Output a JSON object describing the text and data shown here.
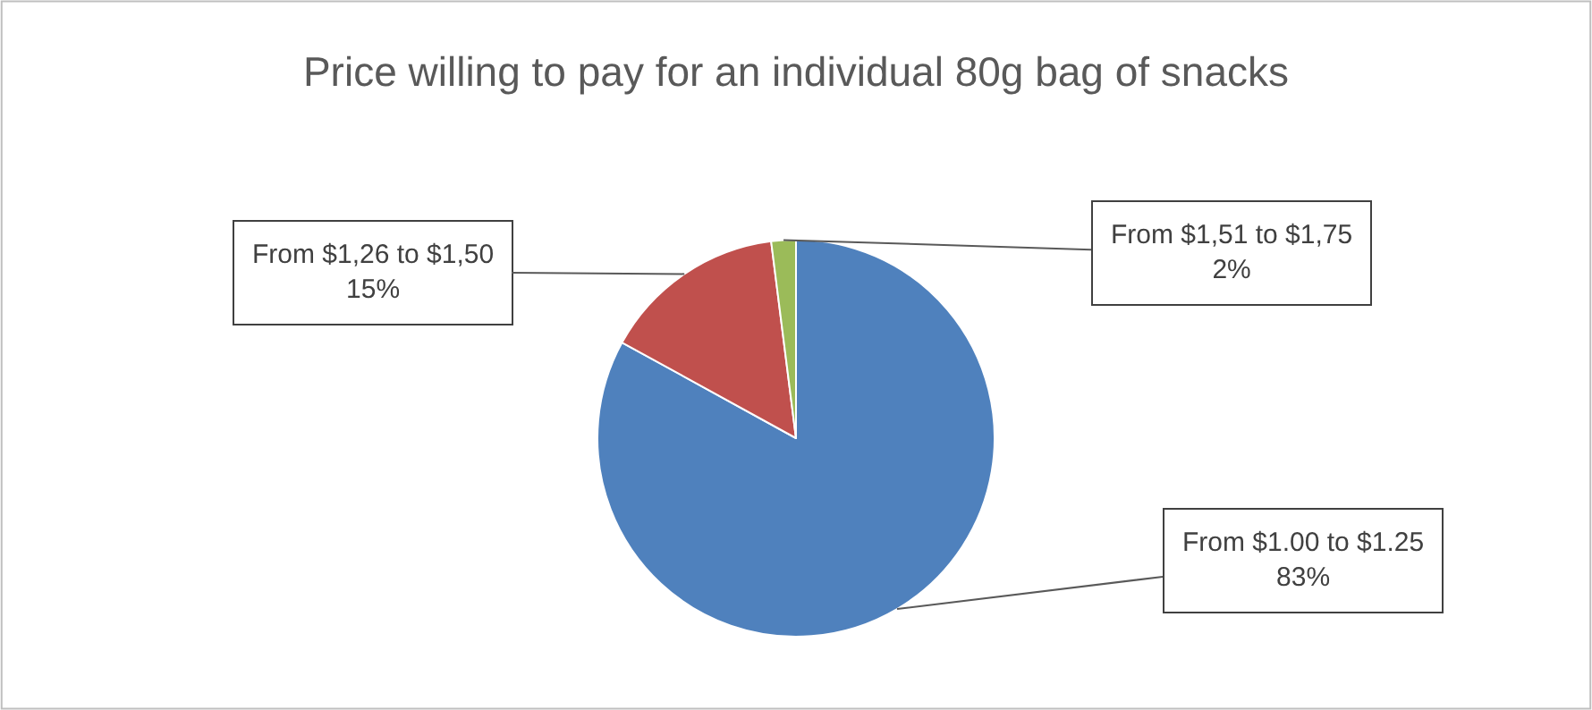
{
  "chart_data": {
    "type": "pie",
    "title": "Price willing to pay for an individual 80g bag of snacks",
    "categories": [
      "From $1.00 to $1.25",
      "From $1,26 to $1,50",
      "From $1,51 to $1,75"
    ],
    "values": [
      83,
      15,
      2
    ],
    "value_labels": [
      "83%",
      "15%",
      "2%"
    ],
    "colors": [
      "#4f81bd",
      "#c0504d",
      "#9bbb59"
    ],
    "legend": false
  }
}
